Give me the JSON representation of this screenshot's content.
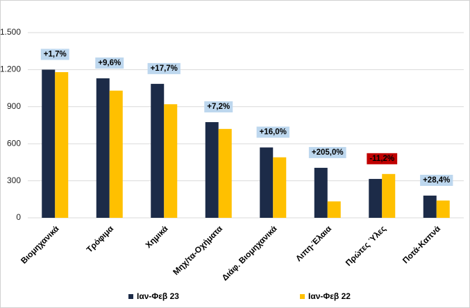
{
  "chart_data": {
    "type": "bar",
    "categories": [
      "Βιομηχανικά",
      "Τρόφιμα",
      "Χημικά",
      "Μηχ/τα-Οχήματα",
      "Διάφ. Βιομηχανικά",
      "Λιπη-Έλαια",
      "Πρώτες Ύλες",
      "Ποτά-Καπνά"
    ],
    "series": [
      {
        "name": "Ιαν-Φεβ 23",
        "color": "#1c2b48",
        "values": [
          1200,
          1130,
          1085,
          775,
          570,
          405,
          315,
          180
        ]
      },
      {
        "name": "Ιαν-Φεβ 22",
        "color": "#ffc000",
        "values": [
          1180,
          1030,
          920,
          720,
          490,
          133,
          355,
          140
        ]
      }
    ],
    "annotations": [
      "+1,7%",
      "+9,6%",
      "+17,7%",
      "+7,2%",
      "+16,0%",
      "+205,0%",
      "-11,2%",
      "+28,4%"
    ],
    "annotation_colors": [
      "#bdd7ee",
      "#bdd7ee",
      "#bdd7ee",
      "#bdd7ee",
      "#bdd7ee",
      "#bdd7ee",
      "#c00000",
      "#bdd7ee"
    ],
    "ylim": [
      0,
      1500
    ],
    "yticks": [
      0,
      300,
      600,
      900,
      {
        "value": 1200,
        "label": "1.200"
      },
      {
        "value": 1500,
        "label": "1.500"
      }
    ],
    "grid": true,
    "legend": "bottom"
  }
}
